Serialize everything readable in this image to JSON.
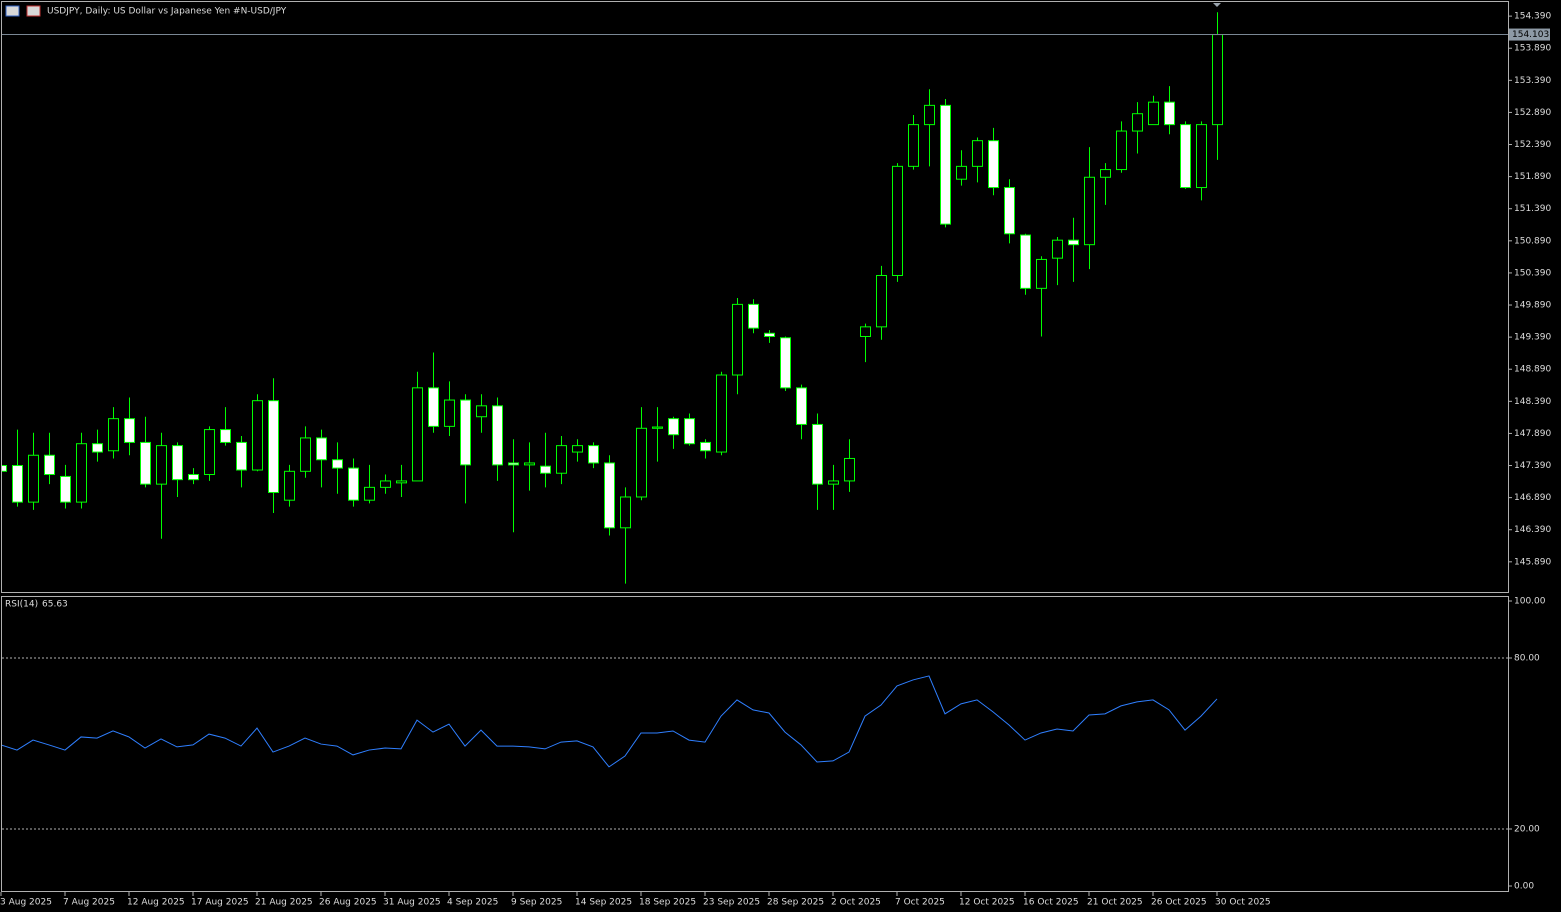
{
  "chart_data": [
    {
      "type": "candlestick",
      "title": "USDJPY, Daily:  US Dollar vs  Japanese Yen #N-USD/JPY",
      "categories": [
        "3 Aug 2025",
        null,
        null,
        null,
        "7 Aug 2025",
        null,
        null,
        null,
        "12 Aug 2025",
        null,
        null,
        null,
        "17 Aug 2025",
        null,
        null,
        null,
        "21 Aug 2025",
        null,
        null,
        null,
        "26 Aug 2025",
        null,
        null,
        null,
        "31 Aug 2025",
        null,
        null,
        null,
        "4 Sep 2025",
        null,
        null,
        null,
        "9 Sep 2025",
        null,
        null,
        null,
        "14 Sep 2025",
        null,
        null,
        null,
        "18 Sep 2025",
        null,
        null,
        null,
        "23 Sep 2025",
        null,
        null,
        null,
        "28 Sep 2025",
        null,
        null,
        null,
        "2 Oct 2025",
        null,
        null,
        null,
        "7 Oct 2025",
        null,
        null,
        null,
        "12 Oct 2025",
        null,
        null,
        null,
        "16 Oct 2025",
        null,
        null,
        null,
        "21 Oct 2025",
        null,
        null,
        null,
        "26 Oct 2025",
        null,
        null,
        null,
        "30 Oct 2025"
      ],
      "open": [
        147.39,
        147.39,
        146.82,
        147.55,
        147.22,
        146.82,
        147.73,
        147.62,
        148.12,
        147.75,
        147.1,
        147.7,
        147.25,
        147.25,
        147.95,
        147.75,
        147.32,
        148.4,
        146.85,
        147.3,
        147.82,
        147.48,
        147.35,
        146.85,
        147.05,
        147.12,
        147.15,
        148.6,
        148.0,
        148.41,
        148.15,
        148.32,
        147.43,
        147.4,
        147.38,
        147.27,
        147.6,
        147.7,
        147.43,
        146.42,
        146.9,
        147.97,
        148.12,
        148.12,
        147.75,
        147.6,
        148.8,
        149.9,
        149.45,
        149.38,
        148.6,
        148.03,
        147.1,
        147.15,
        149.4,
        149.55,
        150.35,
        152.05,
        152.7,
        153.0,
        151.85,
        152.05,
        152.45,
        151.72,
        150.98,
        150.15,
        150.62,
        150.9,
        150.83,
        151.88,
        152.0,
        152.6,
        152.7,
        153.05,
        152.7,
        151.72,
        152.7
      ],
      "high": [
        147.45,
        147.95,
        147.9,
        147.9,
        147.4,
        147.9,
        147.95,
        148.3,
        148.45,
        148.15,
        147.9,
        147.75,
        147.35,
        148.0,
        148.3,
        147.85,
        148.5,
        148.75,
        147.4,
        148.0,
        147.95,
        147.75,
        147.5,
        147.4,
        147.25,
        147.4,
        148.85,
        149.15,
        148.7,
        148.5,
        148.5,
        148.45,
        147.8,
        147.75,
        147.9,
        147.85,
        147.8,
        147.75,
        147.55,
        147.05,
        148.3,
        148.3,
        148.15,
        148.2,
        147.8,
        148.85,
        150.0,
        149.98,
        149.5,
        149.4,
        148.65,
        148.2,
        147.4,
        147.8,
        149.6,
        150.5,
        152.1,
        152.85,
        153.25,
        153.1,
        152.3,
        152.5,
        152.65,
        151.85,
        151.0,
        150.65,
        150.95,
        151.25,
        152.35,
        152.1,
        152.75,
        153.05,
        153.15,
        153.3,
        152.75,
        152.75,
        154.45
      ],
      "low": [
        147.25,
        146.75,
        146.7,
        147.1,
        146.72,
        146.72,
        147.45,
        147.5,
        147.55,
        147.05,
        146.25,
        146.9,
        147.1,
        147.15,
        147.7,
        147.05,
        147.3,
        146.65,
        146.75,
        147.2,
        147.05,
        146.95,
        146.75,
        146.8,
        146.95,
        146.9,
        147.15,
        147.9,
        147.85,
        146.8,
        147.9,
        147.15,
        146.35,
        147.0,
        147.05,
        147.1,
        147.45,
        147.35,
        146.3,
        145.55,
        146.85,
        147.45,
        147.65,
        147.7,
        147.5,
        147.55,
        148.5,
        149.45,
        149.3,
        148.55,
        147.8,
        146.7,
        146.7,
        146.98,
        149.0,
        149.35,
        150.25,
        152.0,
        152.05,
        151.1,
        151.75,
        151.8,
        151.6,
        150.85,
        150.05,
        149.4,
        150.2,
        150.25,
        150.45,
        151.45,
        151.95,
        152.25,
        152.7,
        152.55,
        151.7,
        151.52,
        152.15
      ],
      "close": [
        147.3,
        146.82,
        147.55,
        147.25,
        146.82,
        147.73,
        147.6,
        148.12,
        147.75,
        147.1,
        147.7,
        147.17,
        147.17,
        147.95,
        147.75,
        147.32,
        148.4,
        146.97,
        147.3,
        147.82,
        147.48,
        147.35,
        146.85,
        147.05,
        147.15,
        147.15,
        148.6,
        148.0,
        148.41,
        147.4,
        148.32,
        147.4,
        147.4,
        147.43,
        147.27,
        147.7,
        147.7,
        147.43,
        146.42,
        146.9,
        147.97,
        147.99,
        147.87,
        147.73,
        147.62,
        148.8,
        149.9,
        149.53,
        149.4,
        148.6,
        148.03,
        147.1,
        147.15,
        147.5,
        149.55,
        150.35,
        152.05,
        152.7,
        153.0,
        151.15,
        152.05,
        152.45,
        151.72,
        151.0,
        150.15,
        150.6,
        150.9,
        150.83,
        151.88,
        152.0,
        152.6,
        152.87,
        153.05,
        152.7,
        151.72,
        152.7,
        154.103
      ],
      "color": "#00ff00",
      "up_fill": "#000000",
      "down_fill": "#ffffff",
      "ylim": [
        145.42,
        154.61
      ],
      "yticks": [
        {
          "value": 154.39,
          "label": "154.390"
        },
        {
          "value": 153.89,
          "label": "153.890"
        },
        {
          "value": 153.39,
          "label": "153.390"
        },
        {
          "value": 152.89,
          "label": "152.890"
        },
        {
          "value": 152.39,
          "label": "152.390"
        },
        {
          "value": 151.89,
          "label": "151.890"
        },
        {
          "value": 151.39,
          "label": "151.390"
        },
        {
          "value": 150.89,
          "label": "150.890"
        },
        {
          "value": 150.39,
          "label": "150.390"
        },
        {
          "value": 149.89,
          "label": "149.890"
        },
        {
          "value": 149.39,
          "label": "149.390"
        },
        {
          "value": 148.89,
          "label": "148.890"
        },
        {
          "value": 148.39,
          "label": "148.390"
        },
        {
          "value": 147.89,
          "label": "147.890"
        },
        {
          "value": 147.39,
          "label": "147.390"
        },
        {
          "value": 146.89,
          "label": "146.890"
        },
        {
          "value": 146.39,
          "label": "146.390"
        },
        {
          "value": 145.89,
          "label": "145.890"
        }
      ]
    },
    {
      "type": "line",
      "title": "RSI(14)",
      "color": "#2f7fff",
      "values": [
        49.5,
        47.7,
        51.2,
        49.5,
        47.7,
        52.3,
        51.9,
        54.4,
        52.3,
        48.4,
        51.6,
        48.8,
        49.5,
        53.3,
        51.9,
        49.1,
        55.4,
        47.0,
        49.1,
        51.9,
        49.8,
        49.1,
        46.0,
        47.7,
        48.4,
        48.1,
        58.2,
        54.0,
        56.8,
        49.1,
        54.7,
        49.1,
        49.1,
        48.8,
        48.1,
        50.5,
        50.9,
        48.8,
        41.8,
        45.6,
        53.7,
        53.7,
        54.4,
        51.2,
        50.5,
        59.6,
        65.3,
        61.8,
        60.7,
        54.0,
        49.5,
        43.5,
        43.9,
        47.0,
        59.6,
        63.5,
        70.2,
        72.3,
        73.7,
        60.4,
        63.9,
        65.3,
        61.1,
        56.5,
        51.2,
        53.7,
        55.1,
        54.4,
        60.0,
        60.4,
        63.2,
        64.6,
        65.3,
        61.8,
        54.7,
        59.6,
        65.63
      ],
      "ylim": [
        -2.1,
        101.75
      ],
      "yticks": [
        {
          "value": 100,
          "label": "100.00"
        },
        {
          "value": 80,
          "label": "80.00"
        },
        {
          "value": 20,
          "label": "20.00"
        },
        {
          "value": 0,
          "label": "0.00"
        }
      ],
      "levels": [
        80,
        20
      ]
    }
  ]
}
